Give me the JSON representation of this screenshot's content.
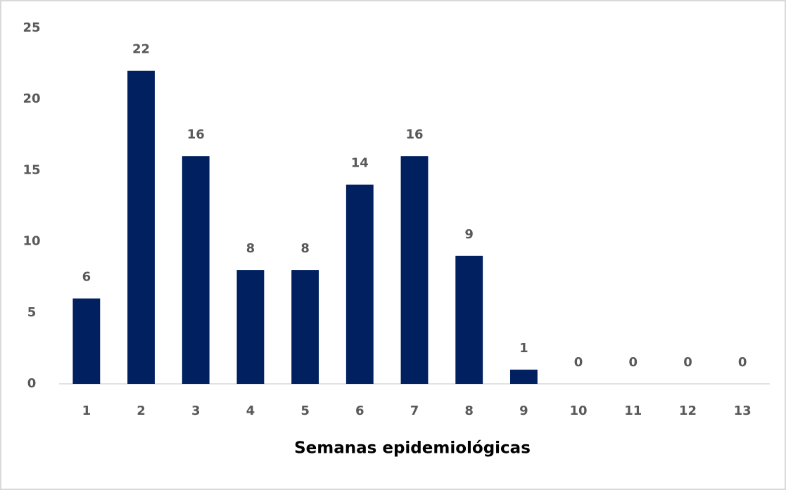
{
  "chart_data": {
    "type": "bar",
    "x_label": "Semanas epidemiológicas",
    "categories": [
      "1",
      "2",
      "3",
      "4",
      "5",
      "6",
      "7",
      "8",
      "9",
      "10",
      "11",
      "12",
      "13"
    ],
    "values": [
      6,
      22,
      16,
      8,
      8,
      14,
      16,
      9,
      1,
      0,
      0,
      0,
      0
    ],
    "color": "#002060",
    "ylim": [
      0,
      25
    ],
    "yticks": [
      0,
      5,
      10,
      15,
      20,
      25
    ],
    "grid": false
  }
}
